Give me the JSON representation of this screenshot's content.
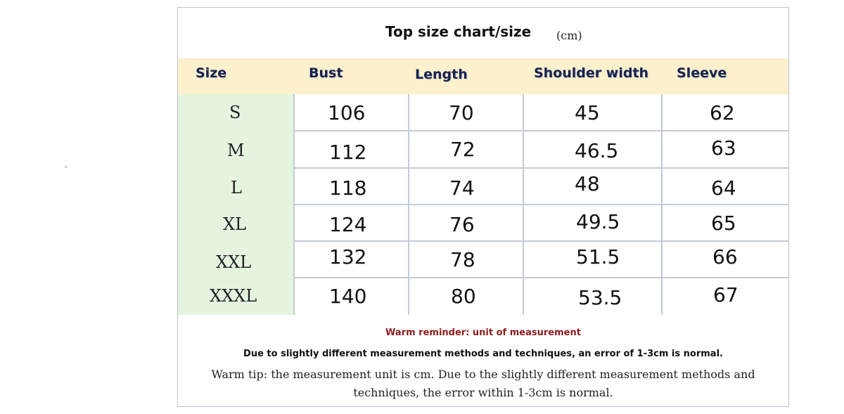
{
  "title": "Top size chart/size",
  "unit": "(cm)",
  "headers": [
    "Size",
    "Bust",
    "Length",
    "Shoulder width",
    "Sleeve"
  ],
  "rows": [
    {
      "size": "S",
      "bust": "106",
      "length": "70",
      "shoulder": "45",
      "sleeve": "62"
    },
    {
      "size": "M",
      "bust": "112",
      "length": "72",
      "shoulder": "46.5",
      "sleeve": "63"
    },
    {
      "size": "L",
      "bust": "118",
      "length": "74",
      "shoulder": "48",
      "sleeve": "64"
    },
    {
      "size": "XL",
      "bust": "124",
      "length": "76",
      "shoulder": "49.5",
      "sleeve": "65"
    },
    {
      "size": "XXL",
      "bust": "132",
      "length": "78",
      "shoulder": "51.5",
      "sleeve": "66"
    },
    {
      "size": "XXXL",
      "bust": "140",
      "length": "80",
      "shoulder": "53.5",
      "sleeve": "67"
    }
  ],
  "notes": {
    "reminder": "Warm reminder: unit of measurement",
    "error_note": "Due to slightly different measurement methods and techniques, an error of 1-3cm is normal.",
    "tip": "Warm tip: the measurement unit is cm. Due to the slightly different measurement methods and techniques, the error within 1-3cm is normal."
  },
  "colors": {
    "header_bg": "#fdf0cc",
    "size_column_bg": "#e5f4df",
    "grid_line": "#c3cbd8",
    "header_text": "#16224f",
    "reminder_text": "#8b1e1e"
  }
}
